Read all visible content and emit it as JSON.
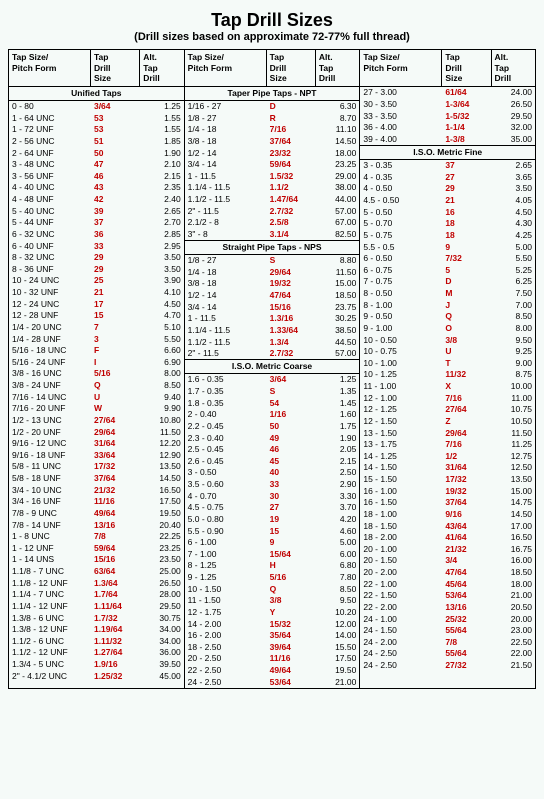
{
  "title": "Tap Drill Sizes",
  "subtitle": "(Drill sizes based on approximate 72-77% full thread)",
  "headers": {
    "c1": "Tap Size/\nPitch Form",
    "c2": "Tap\nDrill\nSize",
    "c3": "Alt.\nTap\nDrill"
  },
  "sections": {
    "unified": "Unified Taps",
    "taperNPT": "Taper Pipe Taps - NPT",
    "straightNPS": "Straight Pipe Taps - NPS",
    "isoCoarse": "I.S.O. Metric Coarse",
    "isoFine": "I.S.O. Metric Fine"
  },
  "col1": [
    {
      "p": "0 - 80",
      "d": "3/64",
      "r": 1,
      "a": "1.25"
    },
    {
      "p": "1 - 64 UNC",
      "d": "53",
      "r": 1,
      "a": "1.55"
    },
    {
      "p": "1 - 72 UNF",
      "d": "53",
      "r": 1,
      "a": "1.55"
    },
    {
      "p": "2 - 56 UNC",
      "d": "51",
      "r": 1,
      "a": "1.85"
    },
    {
      "p": "2 - 64 UNF",
      "d": "50",
      "r": 1,
      "a": "1.90"
    },
    {
      "p": "3 - 48 UNC",
      "d": "47",
      "r": 1,
      "a": "2.10"
    },
    {
      "p": "3 - 56 UNF",
      "d": "46",
      "r": 1,
      "a": "2.15"
    },
    {
      "p": "4 - 40 UNC",
      "d": "43",
      "r": 1,
      "a": "2.35"
    },
    {
      "p": "4 - 48 UNF",
      "d": "42",
      "r": 1,
      "a": "2.40"
    },
    {
      "p": "5 - 40 UNC",
      "d": "39",
      "r": 1,
      "a": "2.65"
    },
    {
      "p": "5 - 44 UNF",
      "d": "37",
      "r": 1,
      "a": "2.70"
    },
    {
      "p": "6 - 32 UNC",
      "d": "36",
      "r": 1,
      "a": "2.85"
    },
    {
      "p": "6 - 40 UNF",
      "d": "33",
      "r": 1,
      "a": "2.95"
    },
    {
      "p": "8 - 32 UNC",
      "d": "29",
      "r": 1,
      "a": "3.50"
    },
    {
      "p": "8 - 36 UNF",
      "d": "29",
      "r": 1,
      "a": "3.50"
    },
    {
      "p": "10 - 24 UNC",
      "d": "25",
      "r": 1,
      "a": "3.90"
    },
    {
      "p": "10 - 32 UNF",
      "d": "21",
      "r": 1,
      "a": "4.10"
    },
    {
      "p": "12 - 24 UNC",
      "d": "17",
      "r": 1,
      "a": "4.50"
    },
    {
      "p": "12 - 28 UNF",
      "d": "15",
      "r": 1,
      "a": "4.70"
    },
    {
      "p": "1/4 - 20 UNC",
      "d": "7",
      "r": 1,
      "a": "5.10"
    },
    {
      "p": "1/4 - 28 UNF",
      "d": "3",
      "r": 1,
      "a": "5.50"
    },
    {
      "p": "5/16 - 18 UNC",
      "d": "F",
      "r": 1,
      "a": "6.60"
    },
    {
      "p": "5/16 - 24 UNF",
      "d": "I",
      "r": 1,
      "a": "6.90"
    },
    {
      "p": "3/8 - 16 UNC",
      "d": "5/16",
      "r": 1,
      "a": "8.00"
    },
    {
      "p": "3/8 - 24 UNF",
      "d": "Q",
      "r": 1,
      "a": "8.50"
    },
    {
      "p": "7/16 - 14 UNC",
      "d": "U",
      "r": 1,
      "a": "9.40"
    },
    {
      "p": "7/16 - 20 UNF",
      "d": "W",
      "r": 1,
      "a": "9.90"
    },
    {
      "p": "1/2 - 13 UNC",
      "d": "27/64",
      "r": 1,
      "a": "10.80"
    },
    {
      "p": "1/2 - 20 UNF",
      "d": "29/64",
      "r": 1,
      "a": "11.50"
    },
    {
      "p": "9/16 - 12 UNC",
      "d": "31/64",
      "r": 1,
      "a": "12.20"
    },
    {
      "p": "9/16 - 18 UNF",
      "d": "33/64",
      "r": 1,
      "a": "12.90"
    },
    {
      "p": "5/8 - 11 UNC",
      "d": "17/32",
      "r": 1,
      "a": "13.50"
    },
    {
      "p": "5/8 - 18 UNF",
      "d": "37/64",
      "r": 1,
      "a": "14.50"
    },
    {
      "p": "3/4 - 10 UNC",
      "d": "21/32",
      "r": 1,
      "a": "16.50"
    },
    {
      "p": "3/4 - 16 UNF",
      "d": "11/16",
      "r": 1,
      "a": "17.50"
    },
    {
      "p": "7/8 - 9 UNC",
      "d": "49/64",
      "r": 1,
      "a": "19.50"
    },
    {
      "p": "7/8 - 14 UNF",
      "d": "13/16",
      "r": 1,
      "a": "20.40"
    },
    {
      "p": "1 - 8 UNC",
      "d": "7/8",
      "r": 1,
      "a": "22.25"
    },
    {
      "p": "1 - 12 UNF",
      "d": "59/64",
      "r": 1,
      "a": "23.25"
    },
    {
      "p": "1 - 14 UNS",
      "d": "15/16",
      "r": 1,
      "a": "23.50"
    },
    {
      "p": "1.1/8 - 7 UNC",
      "d": "63/64",
      "r": 1,
      "a": "25.00"
    },
    {
      "p": "1.1/8 - 12 UNF",
      "d": "1.3/64",
      "r": 1,
      "a": "26.50"
    },
    {
      "p": "1.1/4 - 7 UNC",
      "d": "1.7/64",
      "r": 1,
      "a": "28.00"
    },
    {
      "p": "1.1/4 - 12 UNF",
      "d": "1.11/64",
      "r": 1,
      "a": "29.50"
    },
    {
      "p": "1.3/8 - 6 UNC",
      "d": "1.7/32",
      "r": 1,
      "a": "30.75"
    },
    {
      "p": "1.3/8 - 12 UNF",
      "d": "1.19/64",
      "r": 1,
      "a": "34.00"
    },
    {
      "p": "1.1/2 - 6 UNC",
      "d": "1.11/32",
      "r": 1,
      "a": "34.00"
    },
    {
      "p": "1.1/2 - 12 UNF",
      "d": "1.27/64",
      "r": 1,
      "a": "36.00"
    },
    {
      "p": "1.3/4 - 5 UNC",
      "d": "1.9/16",
      "r": 1,
      "a": "39.50"
    },
    {
      "p": "2\" - 4.1/2 UNC",
      "d": "1.25/32",
      "r": 1,
      "a": "45.00"
    }
  ],
  "col2a": [
    {
      "p": "1/16 - 27",
      "d": "D",
      "r": 1,
      "a": "6.30"
    },
    {
      "p": "1/8 - 27",
      "d": "R",
      "r": 1,
      "a": "8.70"
    },
    {
      "p": "1/4 - 18",
      "d": "7/16",
      "r": 1,
      "a": "11.10"
    },
    {
      "p": "3/8 - 18",
      "d": "37/64",
      "r": 1,
      "a": "14.50"
    },
    {
      "p": "1/2 - 14",
      "d": "23/32",
      "r": 1,
      "a": "18.00"
    },
    {
      "p": "3/4 - 14",
      "d": "59/64",
      "r": 1,
      "a": "23.25"
    },
    {
      "p": "1 - 11.5",
      "d": "1.5/32",
      "r": 1,
      "a": "29.00"
    },
    {
      "p": "1.1/4 - 11.5",
      "d": "1.1/2",
      "r": 1,
      "a": "38.00"
    },
    {
      "p": "1.1/2 - 11.5",
      "d": "1.47/64",
      "r": 1,
      "a": "44.00"
    },
    {
      "p": "2\" - 11.5",
      "d": "2.7/32",
      "r": 1,
      "a": "57.00"
    },
    {
      "p": "2.1/2 - 8",
      "d": "2.5/8",
      "r": 1,
      "a": "67.00"
    },
    {
      "p": "3\" - 8",
      "d": "3.1/4",
      "r": 1,
      "a": "82.50"
    }
  ],
  "col2b": [
    {
      "p": "1/8 - 27",
      "d": "S",
      "r": 1,
      "a": "8.80"
    },
    {
      "p": "1/4 - 18",
      "d": "29/64",
      "r": 1,
      "a": "11.50"
    },
    {
      "p": "3/8 - 18",
      "d": "19/32",
      "r": 1,
      "a": "15.00"
    },
    {
      "p": "1/2 - 14",
      "d": "47/64",
      "r": 1,
      "a": "18.50"
    },
    {
      "p": "3/4 - 14",
      "d": "15/16",
      "r": 1,
      "a": "23.75"
    },
    {
      "p": "1 - 11.5",
      "d": "1.3/16",
      "r": 1,
      "a": "30.25"
    },
    {
      "p": "1.1/4 - 11.5",
      "d": "1.33/64",
      "r": 1,
      "a": "38.50"
    },
    {
      "p": "1.1/2 - 11.5",
      "d": "1.3/4",
      "r": 1,
      "a": "44.50"
    },
    {
      "p": "2\" - 11.5",
      "d": "2.7/32",
      "r": 1,
      "a": "57.00"
    }
  ],
  "col2c": [
    {
      "p": "1.6 - 0.35",
      "d": "3/64",
      "r": 1,
      "a": "1.25"
    },
    {
      "p": "1.7 - 0.35",
      "d": "S",
      "r": 1,
      "a": "1.35"
    },
    {
      "p": "1.8 - 0.35",
      "d": "54",
      "r": 1,
      "a": "1.45"
    },
    {
      "p": "2 - 0.40",
      "d": "1/16",
      "r": 1,
      "a": "1.60"
    },
    {
      "p": "2.2 - 0.45",
      "d": "50",
      "r": 1,
      "a": "1.75"
    },
    {
      "p": "2.3 - 0.40",
      "d": "49",
      "r": 1,
      "a": "1.90"
    },
    {
      "p": "2.5 - 0.45",
      "d": "46",
      "r": 1,
      "a": "2.05"
    },
    {
      "p": "2.6 - 0.45",
      "d": "45",
      "r": 1,
      "a": "2.15"
    },
    {
      "p": "3 - 0.50",
      "d": "40",
      "r": 1,
      "a": "2.50"
    },
    {
      "p": "3.5 - 0.60",
      "d": "33",
      "r": 1,
      "a": "2.90"
    },
    {
      "p": "4 - 0.70",
      "d": "30",
      "r": 1,
      "a": "3.30"
    },
    {
      "p": "4.5 - 0.75",
      "d": "27",
      "r": 1,
      "a": "3.70"
    },
    {
      "p": "5.0 - 0.80",
      "d": "19",
      "r": 1,
      "a": "4.20"
    },
    {
      "p": "5.5 - 0.90",
      "d": "15",
      "r": 1,
      "a": "4.60"
    },
    {
      "p": "6 - 1.00",
      "d": "9",
      "r": 1,
      "a": "5.00"
    },
    {
      "p": "7 - 1.00",
      "d": "15/64",
      "r": 1,
      "a": "6.00"
    },
    {
      "p": "8 - 1.25",
      "d": "H",
      "r": 1,
      "a": "6.80"
    },
    {
      "p": "9 - 1.25",
      "d": "5/16",
      "r": 1,
      "a": "7.80"
    },
    {
      "p": "10 - 1.50",
      "d": "Q",
      "r": 1,
      "a": "8.50"
    },
    {
      "p": "11 - 1.50",
      "d": "3/8",
      "r": 1,
      "a": "9.50"
    },
    {
      "p": "12 - 1.75",
      "d": "Y",
      "r": 1,
      "a": "10.20"
    },
    {
      "p": "14 - 2.00",
      "d": "15/32",
      "r": 1,
      "a": "12.00"
    },
    {
      "p": "16 - 2.00",
      "d": "35/64",
      "r": 1,
      "a": "14.00"
    },
    {
      "p": "18 - 2.50",
      "d": "39/64",
      "r": 1,
      "a": "15.50"
    },
    {
      "p": "20 - 2.50",
      "d": "11/16",
      "r": 1,
      "a": "17.50"
    },
    {
      "p": "22 - 2.50",
      "d": "49/64",
      "r": 1,
      "a": "19.50"
    },
    {
      "p": "24 - 2.50",
      "d": "53/64",
      "r": 1,
      "a": "21.00"
    }
  ],
  "col3a": [
    {
      "p": "27 - 3.00",
      "d": "61/64",
      "r": 1,
      "a": "24.00"
    },
    {
      "p": "30 - 3.50",
      "d": "1-3/64",
      "r": 1,
      "a": "26.50"
    },
    {
      "p": "33 - 3.50",
      "d": "1-5/32",
      "r": 1,
      "a": "29.50"
    },
    {
      "p": "36 - 4.00",
      "d": "1-1/4",
      "r": 1,
      "a": "32.00"
    },
    {
      "p": "39 - 4.00",
      "d": "1-3/8",
      "r": 1,
      "a": "35.00"
    }
  ],
  "col3b": [
    {
      "p": "3 - 0.35",
      "d": "37",
      "r": 1,
      "a": "2.65"
    },
    {
      "p": "4 - 0.35",
      "d": "27",
      "r": 1,
      "a": "3.65"
    },
    {
      "p": "4 - 0.50",
      "d": "29",
      "r": 1,
      "a": "3.50"
    },
    {
      "p": "4.5 - 0.50",
      "d": "21",
      "r": 1,
      "a": "4.05"
    },
    {
      "p": "5 - 0.50",
      "d": "16",
      "r": 1,
      "a": "4.50"
    },
    {
      "p": "5 - 0.70",
      "d": "18",
      "r": 1,
      "a": "4.30"
    },
    {
      "p": "5 - 0.75",
      "d": "18",
      "r": 1,
      "a": "4.25"
    },
    {
      "p": "5.5 - 0.5",
      "d": "9",
      "r": 1,
      "a": "5.00"
    },
    {
      "p": "6 - 0.50",
      "d": "7/32",
      "r": 1,
      "a": "5.50"
    },
    {
      "p": "6 - 0.75",
      "d": "5",
      "r": 1,
      "a": "5.25"
    },
    {
      "p": "7 - 0.75",
      "d": "D",
      "r": 1,
      "a": "6.25"
    },
    {
      "p": "8 - 0.50",
      "d": "M",
      "r": 1,
      "a": "7.50"
    },
    {
      "p": "8 - 1.00",
      "d": "J",
      "r": 1,
      "a": "7.00"
    },
    {
      "p": "9 - 0.50",
      "d": "Q",
      "r": 1,
      "a": "8.50"
    },
    {
      "p": "9 - 1.00",
      "d": "O",
      "r": 1,
      "a": "8.00"
    },
    {
      "p": "10 - 0.50",
      "d": "3/8",
      "r": 1,
      "a": "9.50"
    },
    {
      "p": "10 - 0.75",
      "d": "U",
      "r": 1,
      "a": "9.25"
    },
    {
      "p": "10 - 1.00",
      "d": "T",
      "r": 1,
      "a": "9.00"
    },
    {
      "p": "10 - 1.25",
      "d": "11/32",
      "r": 1,
      "a": "8.75"
    },
    {
      "p": "11 - 1.00",
      "d": "X",
      "r": 1,
      "a": "10.00"
    },
    {
      "p": "12 - 1.00",
      "d": "7/16",
      "r": 1,
      "a": "11.00"
    },
    {
      "p": "12 - 1.25",
      "d": "27/64",
      "r": 1,
      "a": "10.75"
    },
    {
      "p": "12 - 1.50",
      "d": "Z",
      "r": 1,
      "a": "10.50"
    },
    {
      "p": "13 - 1.50",
      "d": "29/64",
      "r": 1,
      "a": "11.50"
    },
    {
      "p": "13 - 1.75",
      "d": "7/16",
      "r": 1,
      "a": "11.25"
    },
    {
      "p": "14 - 1.25",
      "d": "1/2",
      "r": 1,
      "a": "12.75"
    },
    {
      "p": "14 - 1.50",
      "d": "31/64",
      "r": 1,
      "a": "12.50"
    },
    {
      "p": "15 - 1.50",
      "d": "17/32",
      "r": 1,
      "a": "13.50"
    },
    {
      "p": "16 - 1.00",
      "d": "19/32",
      "r": 1,
      "a": "15.00"
    },
    {
      "p": "16 - 1.50",
      "d": "37/64",
      "r": 1,
      "a": "14.75"
    },
    {
      "p": "18 - 1.00",
      "d": "9/16",
      "r": 1,
      "a": "14.50"
    },
    {
      "p": "18 - 1.50",
      "d": "43/64",
      "r": 1,
      "a": "17.00"
    },
    {
      "p": "18 - 2.00",
      "d": "41/64",
      "r": 1,
      "a": "16.50"
    },
    {
      "p": "20 - 1.00",
      "d": "21/32",
      "r": 1,
      "a": "16.75"
    },
    {
      "p": "20 - 1.50",
      "d": "3/4",
      "r": 1,
      "a": "16.00"
    },
    {
      "p": "20 - 2.00",
      "d": "47/64",
      "r": 1,
      "a": "18.50"
    },
    {
      "p": "22 - 1.00",
      "d": "45/64",
      "r": 1,
      "a": "18.00"
    },
    {
      "p": "22 - 1.50",
      "d": "53/64",
      "r": 1,
      "a": "21.00"
    },
    {
      "p": "22 - 2.00",
      "d": "13/16",
      "r": 1,
      "a": "20.50"
    },
    {
      "p": "24 - 1.00",
      "d": "25/32",
      "r": 1,
      "a": "20.00"
    },
    {
      "p": "24 - 1.50",
      "d": "55/64",
      "r": 1,
      "a": "23.00"
    },
    {
      "p": "24 - 2.00",
      "d": "7/8",
      "r": 1,
      "a": "22.50"
    },
    {
      "p": "24 - 2.50",
      "d": "55/64",
      "r": 1,
      "a": "22.00"
    },
    {
      "p": "24 - 2.50",
      "d": "27/32",
      "r": 1,
      "a": "21.50"
    }
  ]
}
